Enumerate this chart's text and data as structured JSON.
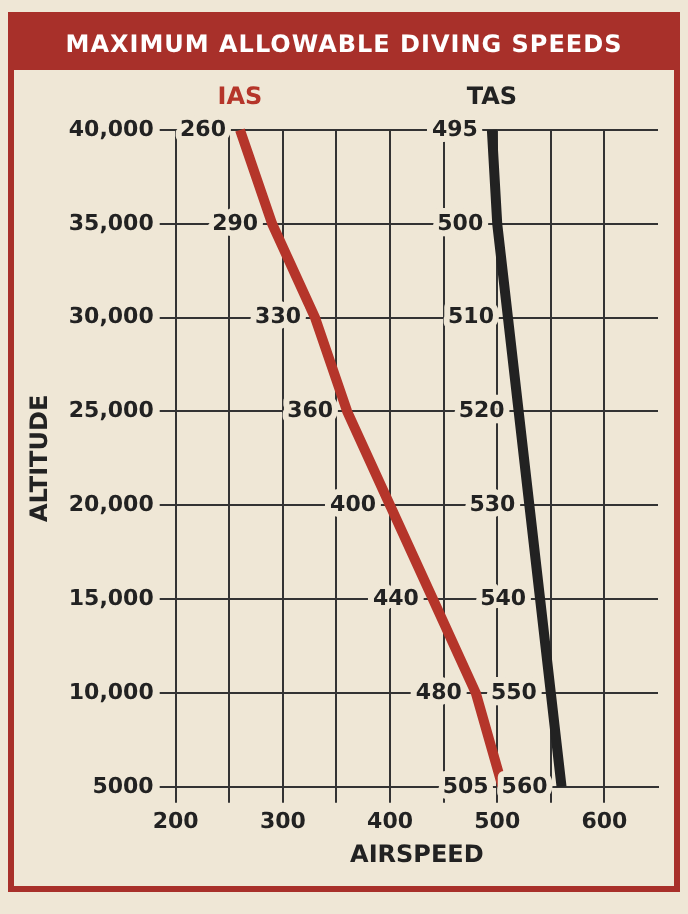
{
  "chart_data": {
    "type": "line",
    "title": "MAXIMUM ALLOWABLE DIVING SPEEDS",
    "xlabel": "AIRSPEED",
    "ylabel": "ALTITUDE",
    "orientation": "horizontal",
    "categories": [
      "40,000",
      "35,000",
      "30,000",
      "25,000",
      "20,000",
      "15,000",
      "10,000",
      "5000"
    ],
    "series": [
      {
        "name": "IAS",
        "color": "#b5352a",
        "values": [
          260,
          290,
          330,
          360,
          400,
          440,
          480,
          505
        ]
      },
      {
        "name": "TAS",
        "color": "#222222",
        "values": [
          495,
          500,
          510,
          520,
          530,
          540,
          550,
          560
        ]
      }
    ],
    "xlim": [
      200,
      650
    ],
    "xticks": [
      200,
      {
        "value": 250,
        "label": null
      },
      300,
      {
        "value": 350,
        "label": null
      },
      400,
      {
        "value": 450,
        "label": null
      },
      500,
      {
        "value": 550,
        "label": null
      },
      600
    ],
    "grid": true,
    "legend": false,
    "marker": "none",
    "line_style": "solid",
    "data_labels": true
  }
}
